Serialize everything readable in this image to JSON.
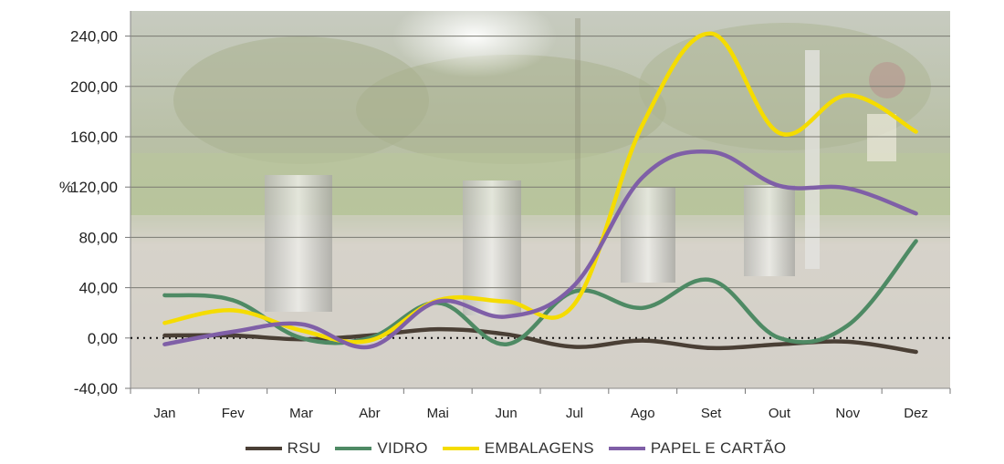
{
  "chart_data": {
    "type": "line",
    "title": "",
    "xlabel": "",
    "ylabel": "%",
    "ylim": [
      -40,
      260
    ],
    "yticks": [
      -40,
      0,
      40,
      80,
      120,
      160,
      200,
      240
    ],
    "ytick_labels": [
      "-40,00",
      "0,00",
      "40,00",
      "80,00",
      "120,00",
      "160,00",
      "200,00",
      "240,00"
    ],
    "categories": [
      "Jan",
      "Fev",
      "Mar",
      "Abr",
      "Mai",
      "Jun",
      "Jul",
      "Ago",
      "Set",
      "Out",
      "Nov",
      "Dez"
    ],
    "grid": true,
    "background": "photo of recycling bins (ecopontos) in a park",
    "legend_position": "bottom",
    "zero_line": "dotted",
    "series": [
      {
        "name": "RSU",
        "color": "#4a3f35",
        "values": [
          2,
          2,
          -1,
          2,
          7,
          3,
          -7,
          -2,
          -8,
          -5,
          -3,
          -11
        ]
      },
      {
        "name": "VIDRO",
        "color": "#4e8a64",
        "values": [
          34,
          30,
          0,
          0,
          28,
          -5,
          37,
          24,
          46,
          0,
          10,
          77
        ]
      },
      {
        "name": "EMBALAGENS",
        "color": "#f5dc00",
        "values": [
          12,
          22,
          6,
          -2,
          30,
          29,
          27,
          170,
          242,
          163,
          193,
          164
        ]
      },
      {
        "name": "PAPEL E CARTÃO",
        "color": "#7f5fa7",
        "values": [
          -5,
          5,
          11,
          -7,
          29,
          17,
          42,
          128,
          148,
          121,
          119,
          99
        ]
      }
    ]
  }
}
